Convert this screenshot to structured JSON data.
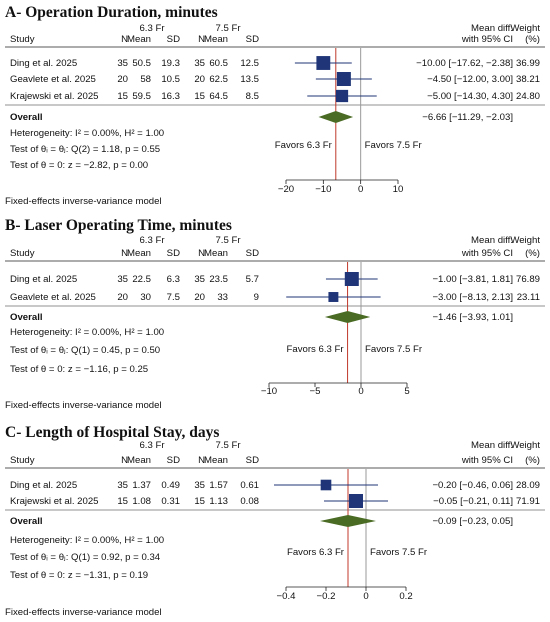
{
  "colors": {
    "square": "#1f3577",
    "diamond": "#4a6b24",
    "ref_line": "#c0392b",
    "null_line": "#999999",
    "text": "#111111"
  },
  "chart_data": [
    {
      "type": "forest",
      "title": "A- Operation Duration, minutes",
      "group1": "6.3 Fr",
      "group2": "7.5 Fr",
      "columns": [
        "Study",
        "N",
        "Mean",
        "SD",
        "N",
        "Mean",
        "SD",
        "Mean diff.",
        "with 95% CI",
        "Weight",
        "(%)"
      ],
      "studies": [
        {
          "name": "Ding et al. 2025",
          "n1": "35",
          "mean1": "50.5",
          "sd1": "19.3",
          "n2": "35",
          "mean2": "60.5",
          "sd2": "12.5",
          "md": -10.0,
          "lo": -17.62,
          "hi": -2.38,
          "ci_text": "−10.00 [−17.62, −2.38]",
          "weight": "36.99"
        },
        {
          "name": "Geavlete et al. 2025",
          "n1": "20",
          "mean1": "58",
          "sd1": "10.5",
          "n2": "20",
          "mean2": "62.5",
          "sd2": "13.5",
          "md": -4.5,
          "lo": -12.0,
          "hi": 3.0,
          "ci_text": "−4.50 [−12.00, 3.00]",
          "weight": "38.21"
        },
        {
          "name": "Krajewski et al. 2025",
          "n1": "15",
          "mean1": "59.5",
          "sd1": "16.3",
          "n2": "15",
          "mean2": "64.5",
          "sd2": "8.5",
          "md": -5.0,
          "lo": -14.3,
          "hi": 4.3,
          "ci_text": "−5.00 [−14.30, 4.30]",
          "weight": "24.80"
        }
      ],
      "overall": {
        "label": "Overall",
        "md": -6.66,
        "lo": -11.29,
        "hi": -2.03,
        "ci_text": "−6.66 [−11.29, −2.03]"
      },
      "stats": [
        "Heterogeneity: I² = 0.00%, H² = 1.00",
        "Test of θᵢ = θⱼ: Q(2) = 1.18, p = 0.55",
        "Test of θ = 0: z = −2.82, p = 0.00"
      ],
      "favors_left": "Favors 6.3 Fr",
      "favors_right": "Favors 7.5 Fr",
      "xlim": [
        -20,
        10
      ],
      "ticks": [
        -20,
        -10,
        0,
        10
      ],
      "tick_labels": [
        "−20",
        "−10",
        "0",
        "10"
      ],
      "footer": "Fixed-effects inverse-variance model"
    },
    {
      "type": "forest",
      "title": "B- Laser Operating Time, minutes",
      "group1": "6.3 Fr",
      "group2": "7.5 Fr",
      "columns": [
        "Study",
        "N",
        "Mean",
        "SD",
        "N",
        "Mean",
        "SD",
        "Mean diff.",
        "with 95% CI",
        "Weight",
        "(%)"
      ],
      "studies": [
        {
          "name": "Ding et al. 2025",
          "n1": "35",
          "mean1": "22.5",
          "sd1": "6.3",
          "n2": "35",
          "mean2": "23.5",
          "sd2": "5.7",
          "md": -1.0,
          "lo": -3.81,
          "hi": 1.81,
          "ci_text": "−1.00 [−3.81, 1.81]",
          "weight": "76.89"
        },
        {
          "name": "Geavlete et al. 2025",
          "n1": "20",
          "mean1": "30",
          "sd1": "7.5",
          "n2": "20",
          "mean2": "33",
          "sd2": "9",
          "md": -3.0,
          "lo": -8.13,
          "hi": 2.13,
          "ci_text": "−3.00 [−8.13, 2.13]",
          "weight": "23.11"
        }
      ],
      "overall": {
        "label": "Overall",
        "md": -1.46,
        "lo": -3.93,
        "hi": 1.01,
        "ci_text": "−1.46 [−3.93, 1.01]"
      },
      "stats": [
        "Heterogeneity: I² = 0.00%, H² = 1.00",
        "Test of θᵢ = θⱼ: Q(1) = 0.45, p = 0.50",
        "Test of θ = 0: z = −1.16, p = 0.25"
      ],
      "favors_left": "Favors 6.3 Fr",
      "favors_right": "Favors 7.5 Fr",
      "xlim": [
        -10,
        5
      ],
      "ticks": [
        -10,
        -5,
        0,
        5
      ],
      "tick_labels": [
        "−10",
        "−5",
        "0",
        "5"
      ],
      "footer": "Fixed-effects inverse-variance model"
    },
    {
      "type": "forest",
      "title": "C- Length of Hospital Stay, days",
      "group1": "6.3 Fr",
      "group2": "7.5 Fr",
      "columns": [
        "Study",
        "N",
        "Mean",
        "SD",
        "N",
        "Mean",
        "SD",
        "Mean diff.",
        "with 95% CI",
        "Weight",
        "(%)"
      ],
      "studies": [
        {
          "name": "Ding et al. 2025",
          "n1": "35",
          "mean1": "1.37",
          "sd1": "0.49",
          "n2": "35",
          "mean2": "1.57",
          "sd2": "0.61",
          "md": -0.2,
          "lo": -0.46,
          "hi": 0.06,
          "ci_text": "−0.20 [−0.46, 0.06]",
          "weight": "28.09"
        },
        {
          "name": "Krajewski et al. 2025",
          "n1": "15",
          "mean1": "1.08",
          "sd1": "0.31",
          "n2": "15",
          "mean2": "1.13",
          "sd2": "0.08",
          "md": -0.05,
          "lo": -0.21,
          "hi": 0.11,
          "ci_text": "−0.05 [−0.21, 0.11]",
          "weight": "71.91"
        }
      ],
      "overall": {
        "label": "Overall",
        "md": -0.09,
        "lo": -0.23,
        "hi": 0.05,
        "ci_text": "−0.09 [−0.23, 0.05]"
      },
      "stats": [
        "Heterogeneity: I² = 0.00%, H² = 1.00",
        "Test of θᵢ = θⱼ: Q(1) = 0.92, p = 0.34",
        "Test of θ = 0: z = −1.31, p = 0.19"
      ],
      "favors_left": "Favors 6.3 Fr",
      "favors_right": "Favors 7.5 Fr",
      "xlim": [
        -0.4,
        0.2
      ],
      "ticks": [
        -0.4,
        -0.2,
        0,
        0.2
      ],
      "tick_labels": [
        "−0.4",
        "−0.2",
        "0",
        "0.2"
      ],
      "footer": "Fixed-effects inverse-variance model"
    }
  ]
}
